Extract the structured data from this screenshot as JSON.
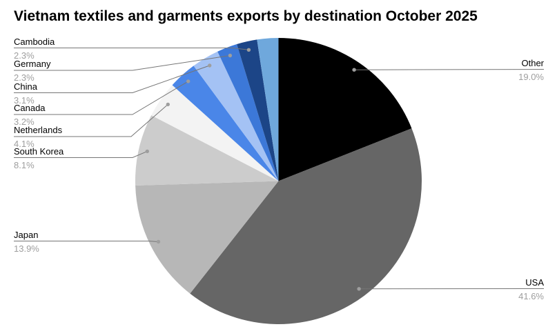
{
  "chart_data": {
    "type": "pie",
    "title": "Vietnam textiles and garments exports by destination October 2025",
    "unit": "%",
    "legend": "none",
    "label_style": "outside labels with gray leader lines and end dots; percent shown under category name",
    "start_angle_deg": 0,
    "direction": "clockwise",
    "background_color": "#ffffff",
    "title_color": "#000000",
    "category_label_color": "#000000",
    "percent_label_color": "#9e9e9e",
    "leader_line_color": "#757575",
    "leader_dot_color": "#9e9e9e",
    "slices": [
      {
        "label": "Other",
        "value": 19.0,
        "pct_text": "19.0%",
        "color": "#000000"
      },
      {
        "label": "USA",
        "value": 41.6,
        "pct_text": "41.6%",
        "color": "#666666"
      },
      {
        "label": "Japan",
        "value": 13.9,
        "pct_text": "13.9%",
        "color": "#b7b7b7"
      },
      {
        "label": "South Korea",
        "value": 8.1,
        "pct_text": "8.1%",
        "color": "#cccccc"
      },
      {
        "label": "Netherlands",
        "value": 4.1,
        "pct_text": "4.1%",
        "color": "#f3f3f3"
      },
      {
        "label": "Canada",
        "value": 3.2,
        "pct_text": "3.2%",
        "color": "#4a86e8"
      },
      {
        "label": "China",
        "value": 3.1,
        "pct_text": "3.1%",
        "color": "#a4c2f4"
      },
      {
        "label": "Germany",
        "value": 2.3,
        "pct_text": "2.3%",
        "color": "#3c78d8"
      },
      {
        "label": "Cambodia",
        "value": 2.3,
        "pct_text": "2.3%",
        "color": "#1c4587"
      },
      {
        "label": "",
        "value": 2.4,
        "pct_text": "",
        "color": "#6fa8dc"
      }
    ]
  }
}
